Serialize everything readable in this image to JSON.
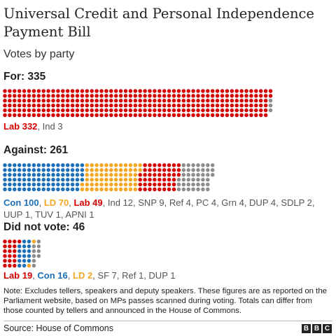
{
  "title": "Universal Credit and Personal Independence Payment Bill",
  "subtitle": "Votes by party",
  "note": "Note: Excludes tellers, speakers and deputy speakers. These figures are as reported on the Parliament website, based on MPs passes scanned during voting. Totals can differ from those counted by tellers and announced in the House of Commons.",
  "source": "Source: House of Commons",
  "logo": [
    "B",
    "B",
    "C"
  ],
  "colors": {
    "Lab": "#d50000",
    "Con": "#1d70b8",
    "LD": "#f5a623",
    "Other": "#8c8c8c"
  },
  "chart_data": {
    "type": "waffle",
    "title": "Universal Credit and Personal Independence Payment Bill",
    "subtitle": "Votes by party",
    "groups": [
      {
        "heading": "For: 335",
        "total": 335,
        "parties": [
          {
            "label": "Lab",
            "count": 332,
            "color": "#d50000"
          },
          {
            "label": "Ind",
            "count": 3,
            "color": "#8c8c8c"
          }
        ]
      },
      {
        "heading": "Against: 261",
        "total": 261,
        "parties": [
          {
            "label": "Con",
            "count": 100,
            "color": "#1d70b8"
          },
          {
            "label": "LD",
            "count": 70,
            "color": "#f5a623"
          },
          {
            "label": "Lab",
            "count": 49,
            "color": "#d50000"
          },
          {
            "label": "Ind",
            "count": 12,
            "color": "#8c8c8c"
          },
          {
            "label": "SNP",
            "count": 9,
            "color": "#8c8c8c"
          },
          {
            "label": "Ref",
            "count": 4,
            "color": "#8c8c8c"
          },
          {
            "label": "PC",
            "count": 4,
            "color": "#8c8c8c"
          },
          {
            "label": "Grn",
            "count": 4,
            "color": "#8c8c8c"
          },
          {
            "label": "DUP",
            "count": 4,
            "color": "#8c8c8c"
          },
          {
            "label": "SDLP",
            "count": 2,
            "color": "#8c8c8c"
          },
          {
            "label": "UUP",
            "count": 1,
            "color": "#8c8c8c"
          },
          {
            "label": "TUV",
            "count": 1,
            "color": "#8c8c8c"
          },
          {
            "label": "APNI",
            "count": 1,
            "color": "#8c8c8c"
          }
        ]
      },
      {
        "heading": "Did not vote: 46",
        "total": 46,
        "parties": [
          {
            "label": "Lab",
            "count": 19,
            "color": "#d50000"
          },
          {
            "label": "Con",
            "count": 16,
            "color": "#1d70b8"
          },
          {
            "label": "LD",
            "count": 2,
            "color": "#f5a623"
          },
          {
            "label": "SF",
            "count": 7,
            "color": "#8c8c8c"
          },
          {
            "label": "Ref",
            "count": 1,
            "color": "#8c8c8c"
          },
          {
            "label": "DUP",
            "count": 1,
            "color": "#8c8c8c"
          }
        ]
      }
    ]
  }
}
